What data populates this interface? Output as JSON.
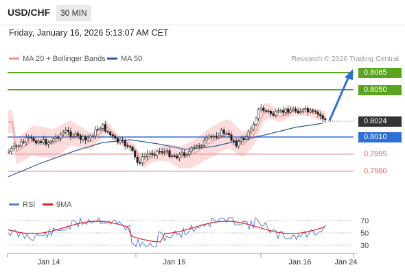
{
  "header": {
    "pair": "USD/CHF",
    "timeframe": "30 MIN"
  },
  "datetime": "Friday, January 16, 2026 5:13:07 AM CET",
  "legend_main": [
    {
      "label": "MA 20 + Bollinger Bands",
      "color": "#f08c8c"
    },
    {
      "label": "MA 50",
      "color": "#2e5aa0"
    }
  ],
  "credit": "Research © 2026 Trading Central",
  "levels": [
    {
      "value": "0.8065",
      "style": "resistance",
      "color": "#5aa51e"
    },
    {
      "value": "0.8050",
      "style": "resistance",
      "color": "#5aa51e"
    },
    {
      "value": "0.8024",
      "style": "current",
      "color": "#333333"
    },
    {
      "value": "0.8010",
      "style": "pivot",
      "color": "#2e6fd6"
    },
    {
      "value": "0.7995",
      "style": "support",
      "color": "#e05a5a"
    },
    {
      "value": "0.7980",
      "style": "support",
      "color": "#e05a5a"
    }
  ],
  "legend_rsi": [
    {
      "label": "RSI",
      "color": "#5b7fd6"
    },
    {
      "label": "9MA",
      "color": "#e02020"
    }
  ],
  "rsi_levels": [
    "70",
    "50",
    "30"
  ],
  "x_labels": [
    "Jan 14",
    "Jan 15",
    "Jan 16",
    "Jan 24"
  ]
}
